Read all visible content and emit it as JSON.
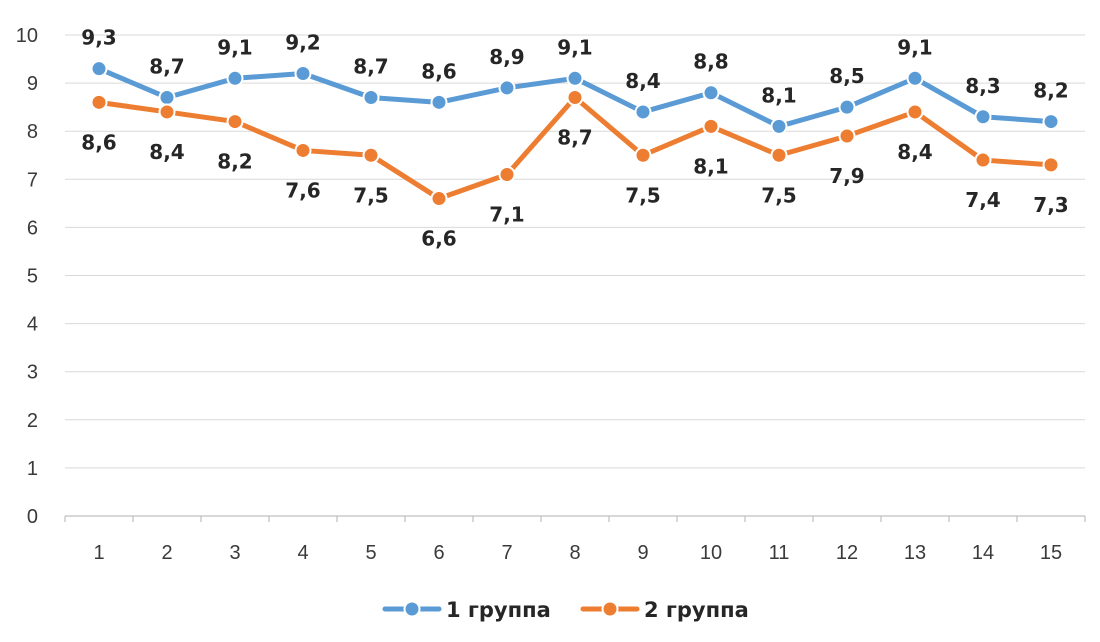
{
  "chart_data": {
    "type": "line",
    "title": "",
    "xlabel": "",
    "ylabel": "",
    "x": [
      "1",
      "2",
      "3",
      "4",
      "5",
      "6",
      "7",
      "8",
      "9",
      "10",
      "11",
      "12",
      "13",
      "14",
      "15"
    ],
    "ylim": [
      0,
      10
    ],
    "yticks": [
      "0",
      "1",
      "2",
      "3",
      "4",
      "5",
      "6",
      "7",
      "8",
      "9",
      "10"
    ],
    "grid": true,
    "legend_position": "bottom",
    "series": [
      {
        "name": "1 группа",
        "color": "#5b9bd5",
        "values": [
          9.3,
          8.7,
          9.1,
          9.2,
          8.7,
          8.6,
          8.9,
          9.1,
          8.4,
          8.8,
          8.1,
          8.5,
          9.1,
          8.3,
          8.2
        ],
        "labels": [
          "9,3",
          "8,7",
          "9,1",
          "9,2",
          "8,7",
          "8,6",
          "8,9",
          "9,1",
          "8,4",
          "8,8",
          "8,1",
          "8,5",
          "9,1",
          "8,3",
          "8,2"
        ]
      },
      {
        "name": "2 группа",
        "color": "#ed7d31",
        "values": [
          8.6,
          8.4,
          8.2,
          7.6,
          7.5,
          6.6,
          7.1,
          8.7,
          7.5,
          8.1,
          7.5,
          7.9,
          8.4,
          7.4,
          7.3
        ],
        "labels": [
          "8,6",
          "8,4",
          "8,2",
          "7,6",
          "7,5",
          "6,6",
          "7,1",
          "8,7",
          "7,5",
          "8,1",
          "7,5",
          "7,9",
          "8,4",
          "7,4",
          "7,3"
        ]
      }
    ]
  }
}
